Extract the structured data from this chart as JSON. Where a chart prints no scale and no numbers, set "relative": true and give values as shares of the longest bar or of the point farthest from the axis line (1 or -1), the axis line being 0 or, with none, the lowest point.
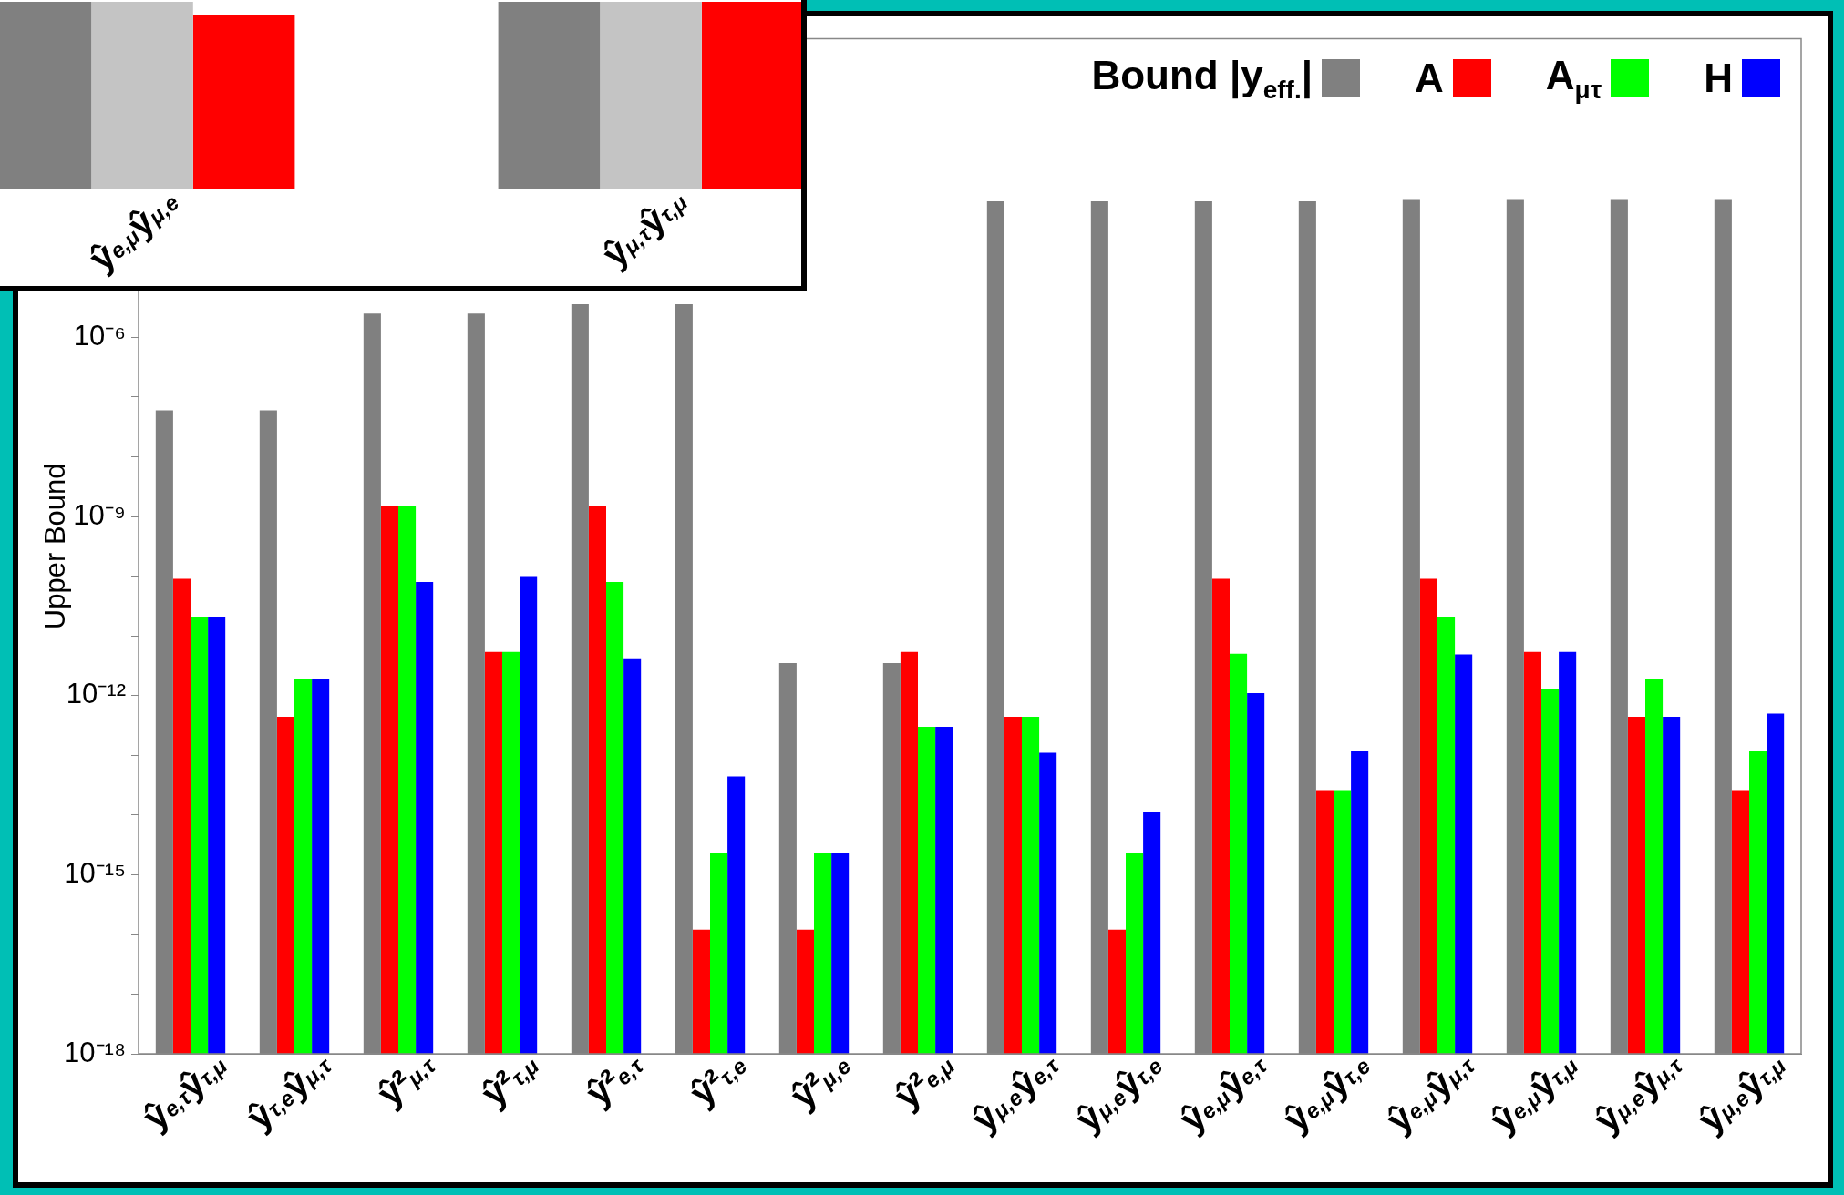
{
  "chart_data": [
    {
      "type": "bar",
      "ylabel": "Upper Bound",
      "log": true,
      "ylim": [
        1e-18,
        0.1
      ],
      "yticks": [
        {
          "value": 1e-18,
          "label": "10⁻¹⁸"
        },
        {
          "value": 1e-17,
          "label": null
        },
        {
          "value": 1e-16,
          "label": null
        },
        {
          "value": 1e-15,
          "label": "10⁻¹⁵"
        },
        {
          "value": 1e-14,
          "label": null
        },
        {
          "value": 1e-13,
          "label": null
        },
        {
          "value": 1e-12,
          "label": "10⁻¹²"
        },
        {
          "value": 1e-11,
          "label": null
        },
        {
          "value": 1e-10,
          "label": null
        },
        {
          "value": 1e-09,
          "label": "10⁻⁹"
        },
        {
          "value": 1e-08,
          "label": null
        },
        {
          "value": 1e-07,
          "label": null
        },
        {
          "value": 1e-06,
          "label": "10⁻⁶"
        },
        {
          "value": 1e-05,
          "label": null
        },
        {
          "value": 0.0001,
          "label": null
        },
        {
          "value": 0.001,
          "label": null
        },
        {
          "value": 0.01,
          "label": null
        }
      ],
      "categories": [
        "ŷ$_{e,τ}$ŷ$_{τ,μ}$",
        "ŷ$_{τ,e}$ŷ$_{μ,τ}$",
        "ŷ²$_{μ,τ}$",
        "ŷ²$_{τ,μ}$",
        "ŷ²$_{e,τ}$",
        "ŷ²$_{τ,e}$",
        "ŷ²$_{μ,e}$",
        "ŷ²$_{e,μ}$",
        "ŷ$_{μ,e}$ŷ$_{e,τ}$",
        "ŷ$_{μ,e}$ŷ$_{τ,e}$",
        "ŷ$_{e,μ}$ŷ$_{e,τ}$",
        "ŷ$_{e,μ}$ŷ$_{τ,e}$",
        "ŷ$_{e,μ}$ŷ$_{μ,τ}$",
        "ŷ$_{e,μ}$ŷ$_{τ,μ}$",
        "ŷ$_{μ,e}$ŷ$_{μ,τ}$",
        "ŷ$_{μ,e}$ŷ$_{τ,μ}$"
      ],
      "series": [
        {
          "name": "Bound |y$_{eff.}$|",
          "color": "#808080",
          "values": [
            6e-08,
            6e-08,
            2.5e-06,
            2.5e-06,
            3.6e-06,
            3.6e-06,
            3.5e-12,
            3.5e-12,
            0.00019,
            0.00019,
            0.00019,
            0.00019,
            0.0002,
            0.0002,
            0.0002,
            0.0002
          ]
        },
        {
          "name": "A",
          "color": "#ff0000",
          "values": [
            9e-11,
            4.4e-13,
            1.5e-09,
            5.4e-12,
            1.5e-09,
            1.2e-16,
            1.2e-16,
            5.4e-12,
            4.4e-13,
            1.2e-16,
            9e-11,
            2.6e-14,
            9e-11,
            5.4e-12,
            4.4e-13,
            2.6e-14
          ]
        },
        {
          "name": "A$_{μτ}$",
          "color": "#00ff00",
          "values": [
            2.1e-11,
            1.9e-12,
            1.5e-09,
            5.4e-12,
            8e-11,
            2.3e-15,
            2.3e-15,
            3e-13,
            4.4e-13,
            2.3e-15,
            5e-12,
            2.6e-14,
            2.1e-11,
            1.3e-12,
            1.9e-12,
            1.2e-13
          ]
        },
        {
          "name": "H",
          "color": "#0000ff",
          "values": [
            2.1e-11,
            1.9e-12,
            8e-11,
            1e-10,
            4.2e-12,
            4.4e-14,
            2.3e-15,
            3e-13,
            1.1e-13,
            1.1e-14,
            1.1e-12,
            1.2e-13,
            4.9e-12,
            5.4e-12,
            4.4e-13,
            5e-13
          ]
        }
      ],
      "legend": "top right"
    },
    {
      "type": "bar",
      "relative": true,
      "categories": [
        "ŷ$_{e,μ}$ŷ$_{μ,e}$",
        "ŷ$_{μ,τ}$ŷ$_{τ,μ}$"
      ],
      "series": [
        {
          "color": "#808080",
          "values": [
            1,
            1
          ]
        },
        {
          "color": "#c4c4c4",
          "values": [
            1,
            1
          ]
        },
        {
          "color": "#ff0000",
          "values": [
            0.93,
            1
          ]
        }
      ]
    }
  ]
}
